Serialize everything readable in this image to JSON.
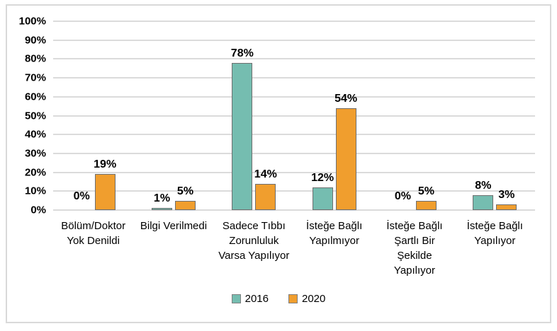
{
  "chart_data": {
    "type": "bar",
    "title": "",
    "xlabel": "",
    "ylabel": "",
    "categories": [
      "Bölüm/Doktor Yok Denildi",
      "Bilgi Verilmedi",
      "Sadece Tıbbı Zorunluluk Varsa Yapılıyor",
      "İsteğe Bağlı Yapılmıyor",
      "İsteğe Bağlı Şartlı Bir Şekilde Yapılıyor",
      "İsteğe Bağlı Yapılıyor"
    ],
    "category_label_lines": [
      [
        "Bölüm/Doktor",
        "Yok Denildi"
      ],
      [
        "Bilgi Verilmedi"
      ],
      [
        "Sadece Tıbbı",
        "Zorunluluk",
        "Varsa Yapılıyor"
      ],
      [
        "İsteğe Bağlı",
        "Yapılmıyor"
      ],
      [
        "İsteğe Bağlı",
        "Şartlı Bir",
        "Şekilde",
        "Yapılıyor"
      ],
      [
        "İsteğe Bağlı",
        "Yapılıyor"
      ]
    ],
    "series": [
      {
        "name": "2016",
        "color": "#75BDB0",
        "values": [
          0,
          1,
          78,
          12,
          0,
          8
        ]
      },
      {
        "name": "2020",
        "color": "#F09E2E",
        "values": [
          19,
          5,
          14,
          54,
          5,
          3
        ]
      }
    ],
    "data_labels": [
      [
        "0%",
        "1%",
        "78%",
        "12%",
        "0%",
        "8%"
      ],
      [
        "19%",
        "5%",
        "14%",
        "54%",
        "5%",
        "3%"
      ]
    ],
    "ylim": [
      0,
      100
    ],
    "ytick_step": 10,
    "yticks": [
      "100%",
      "90%",
      "80%",
      "70%",
      "60%",
      "50%",
      "40%",
      "30%",
      "20%",
      "10%",
      "0%"
    ],
    "grid": true,
    "legend_position": "bottom"
  },
  "colors": {
    "gridline": "#DBDBDB",
    "bar_border": "#6F6F6F",
    "frame_border": "#D9D9D9",
    "text": "#000000",
    "series_2016": "#75BDB0",
    "series_2020": "#F09E2E"
  }
}
